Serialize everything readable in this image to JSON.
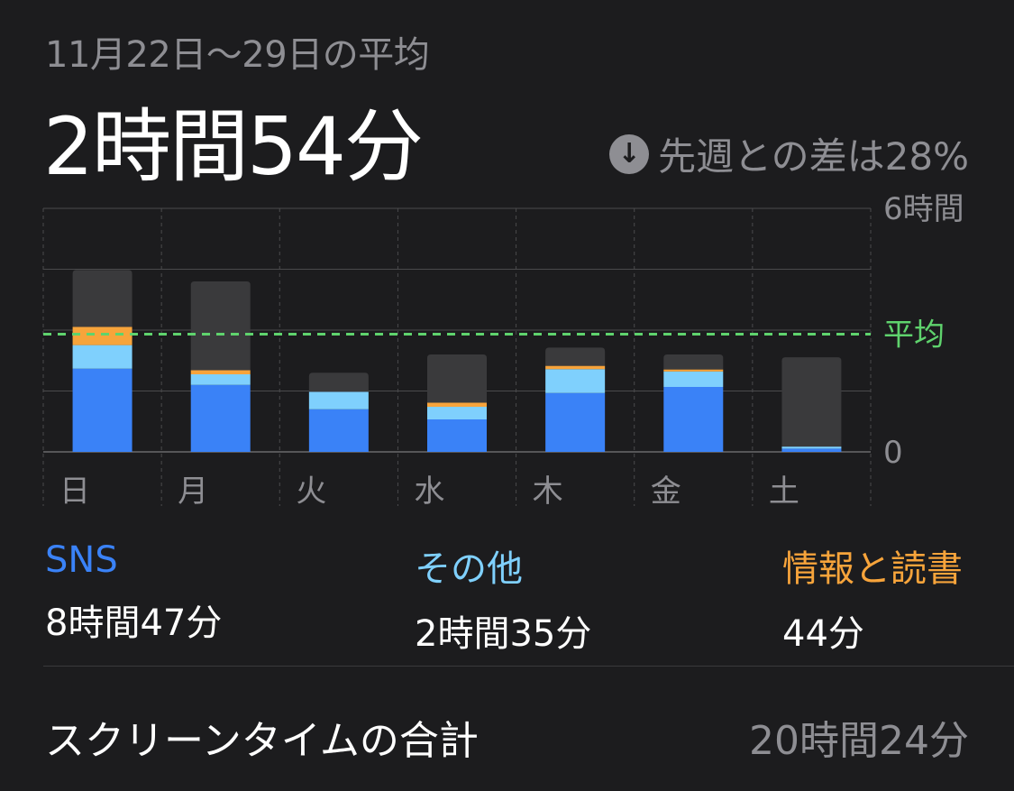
{
  "header": {
    "range_label": "11月22日〜29日の平均",
    "average_value": "2時間54分",
    "change_text": "先週との差は28%",
    "change_icon": "arrow-down-circle-icon"
  },
  "colors": {
    "background": "#1c1c1e",
    "sns": "#3a82f7",
    "other": "#7fd0fd",
    "info_reading": "#f7a43b",
    "remaining": "#3a3a3c",
    "average_line": "#5fd36d",
    "grid": "#4a4a4c"
  },
  "chart_data": {
    "type": "bar",
    "stacked": true,
    "categories": [
      "日",
      "月",
      "火",
      "水",
      "木",
      "金",
      "土"
    ],
    "series": [
      {
        "name": "SNS",
        "color": "#3a82f7",
        "values": [
          2.05,
          1.65,
          1.05,
          0.8,
          1.45,
          1.6,
          0.08
        ]
      },
      {
        "name": "その他",
        "color": "#7fd0fd",
        "values": [
          0.58,
          0.26,
          0.43,
          0.31,
          0.59,
          0.38,
          0.05
        ]
      },
      {
        "name": "情報と読書",
        "color": "#f7a43b",
        "values": [
          0.45,
          0.1,
          0.0,
          0.1,
          0.08,
          0.05,
          0.0
        ]
      },
      {
        "name": "",
        "color": "#3a3a3c",
        "values": [
          1.4,
          2.19,
          0.47,
          1.19,
          0.45,
          0.37,
          2.2
        ]
      }
    ],
    "average_label": "平均",
    "average": 2.9,
    "y_tick_labels": [
      {
        "value": 6,
        "label": "6時間"
      },
      {
        "value": 0,
        "label": "0"
      }
    ],
    "ylim": [
      0,
      6
    ],
    "grid": true
  },
  "legend": [
    {
      "name": "SNS",
      "value": "8時間47分",
      "color": "#3a82f7"
    },
    {
      "name": "その他",
      "value": "2時間35分",
      "color": "#7fd0fd"
    },
    {
      "name": "情報と読書",
      "value": "44分",
      "color": "#f7a43b"
    }
  ],
  "total": {
    "label": "スクリーンタイムの合計",
    "value": "20時間24分"
  }
}
